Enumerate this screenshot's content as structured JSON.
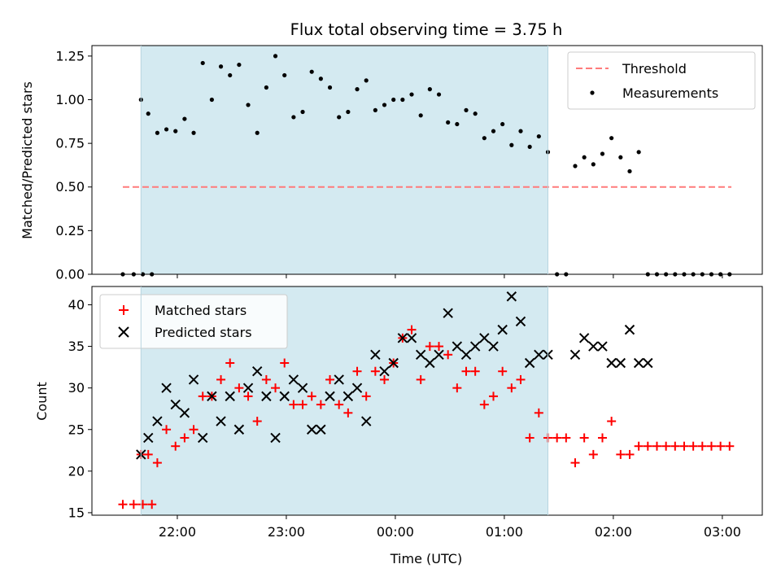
{
  "chart_data": [
    {
      "type": "scatter",
      "title": "Flux total observing time = 3.75 h",
      "xlabel": "",
      "ylabel": "Matched/Predicted stars",
      "ylim": [
        0,
        1.31
      ],
      "yticks": [
        "0.00",
        "0.25",
        "0.50",
        "0.75",
        "1.00",
        "1.25"
      ],
      "xlim": [
        "21:13",
        "03:22"
      ],
      "shaded_span": [
        "21:40",
        "01:24"
      ],
      "shade_color": "#d4eaf1",
      "legend_position": "upper right",
      "threshold": {
        "name": "Threshold",
        "value": 0.5,
        "x": [
          "21:30",
          "03:05"
        ],
        "color": "#ff7b7b"
      },
      "series": [
        {
          "name": "Measurements",
          "color": "#000000",
          "x": [
            "21:30",
            "21:36",
            "21:41",
            "21:46",
            "21:40",
            "21:44",
            "21:49",
            "21:54",
            "21:59",
            "22:04",
            "22:09",
            "22:14",
            "22:19",
            "22:24",
            "22:29",
            "22:34",
            "22:39",
            "22:44",
            "22:49",
            "22:54",
            "22:59",
            "23:04",
            "23:09",
            "23:14",
            "23:19",
            "23:24",
            "23:29",
            "23:34",
            "23:39",
            "23:44",
            "23:49",
            "23:54",
            "23:59",
            "00:04",
            "00:09",
            "00:14",
            "00:19",
            "00:24",
            "00:29",
            "00:34",
            "00:39",
            "00:44",
            "00:49",
            "00:54",
            "00:59",
            "01:04",
            "01:09",
            "01:14",
            "01:19",
            "01:24",
            "01:29",
            "01:34",
            "01:39",
            "01:44",
            "01:49",
            "01:54",
            "01:59",
            "02:04",
            "02:09",
            "02:14",
            "02:19",
            "02:24",
            "02:29",
            "02:34",
            "02:39",
            "02:44",
            "02:49",
            "02:54",
            "02:59",
            "03:04"
          ],
          "y": [
            0,
            0,
            0,
            0,
            1.0,
            0.92,
            0.81,
            0.83,
            0.82,
            0.89,
            0.81,
            1.21,
            1.0,
            1.19,
            1.14,
            1.2,
            0.97,
            0.81,
            1.07,
            1.25,
            1.14,
            0.9,
            0.93,
            1.16,
            1.12,
            1.07,
            0.9,
            0.93,
            1.06,
            1.11,
            0.94,
            0.97,
            1.0,
            1.0,
            1.03,
            0.91,
            1.06,
            1.03,
            0.87,
            0.86,
            0.94,
            0.92,
            0.78,
            0.82,
            0.86,
            0.74,
            0.82,
            0.73,
            0.79,
            0.7,
            0,
            0,
            0.62,
            0.67,
            0.63,
            0.69,
            0.78,
            0.67,
            0.59,
            0.7,
            0,
            0,
            0,
            0,
            0,
            0,
            0,
            0,
            0,
            0
          ]
        }
      ]
    },
    {
      "type": "scatter",
      "title": "",
      "xlabel": "Time (UTC)",
      "ylabel": "Count",
      "ylim": [
        14.7,
        42.2
      ],
      "yticks": [
        "15",
        "20",
        "25",
        "30",
        "35",
        "40"
      ],
      "xticks": [
        "22:00",
        "23:00",
        "00:00",
        "01:00",
        "02:00",
        "03:00"
      ],
      "xlim": [
        "21:13",
        "03:22"
      ],
      "shaded_span": [
        "21:40",
        "01:24"
      ],
      "legend_position": "upper left",
      "series": [
        {
          "name": "Matched stars",
          "marker": "plus",
          "color": "#ff0000",
          "x": [
            "21:30",
            "21:36",
            "21:41",
            "21:46",
            "21:40",
            "21:44",
            "21:49",
            "21:54",
            "21:59",
            "22:04",
            "22:09",
            "22:14",
            "22:19",
            "22:24",
            "22:29",
            "22:34",
            "22:39",
            "22:44",
            "22:49",
            "22:54",
            "22:59",
            "23:04",
            "23:09",
            "23:14",
            "23:19",
            "23:24",
            "23:29",
            "23:34",
            "23:39",
            "23:44",
            "23:49",
            "23:54",
            "23:59",
            "00:04",
            "00:09",
            "00:14",
            "00:19",
            "00:24",
            "00:29",
            "00:34",
            "00:39",
            "00:44",
            "00:49",
            "00:54",
            "00:59",
            "01:04",
            "01:09",
            "01:14",
            "01:19",
            "01:24",
            "01:29",
            "01:34",
            "01:39",
            "01:44",
            "01:49",
            "01:54",
            "01:59",
            "02:04",
            "02:09",
            "02:14",
            "02:19",
            "02:24",
            "02:29",
            "02:34",
            "02:39",
            "02:44",
            "02:49",
            "02:54",
            "02:59",
            "03:04"
          ],
          "y": [
            16,
            16,
            16,
            16,
            22,
            22,
            21,
            25,
            23,
            24,
            25,
            29,
            29,
            31,
            33,
            30,
            29,
            26,
            31,
            30,
            33,
            28,
            28,
            29,
            28,
            31,
            28,
            27,
            32,
            29,
            32,
            31,
            33,
            36,
            37,
            31,
            35,
            35,
            34,
            30,
            32,
            32,
            28,
            29,
            32,
            30,
            31,
            24,
            27,
            24,
            24,
            24,
            21,
            24,
            22,
            24,
            26,
            22,
            22,
            23,
            23,
            23,
            23,
            23,
            23,
            23,
            23,
            23,
            23,
            23
          ]
        },
        {
          "name": "Predicted stars",
          "marker": "x",
          "color": "#000000",
          "x": [
            "21:40",
            "21:44",
            "21:49",
            "21:54",
            "21:59",
            "22:04",
            "22:09",
            "22:14",
            "22:19",
            "22:24",
            "22:29",
            "22:34",
            "22:39",
            "22:44",
            "22:49",
            "22:54",
            "22:59",
            "23:04",
            "23:09",
            "23:14",
            "23:19",
            "23:24",
            "23:29",
            "23:34",
            "23:39",
            "23:44",
            "23:49",
            "23:54",
            "23:59",
            "00:04",
            "00:09",
            "00:14",
            "00:19",
            "00:24",
            "00:29",
            "00:34",
            "00:39",
            "00:44",
            "00:49",
            "00:54",
            "00:59",
            "01:04",
            "01:09",
            "01:14",
            "01:19",
            "01:24",
            "01:39",
            "01:44",
            "01:49",
            "01:54",
            "01:59",
            "02:04",
            "02:09",
            "02:14",
            "02:19"
          ],
          "y": [
            22,
            24,
            26,
            30,
            28,
            27,
            31,
            24,
            29,
            26,
            29,
            25,
            30,
            32,
            29,
            24,
            29,
            31,
            30,
            25,
            25,
            29,
            31,
            29,
            30,
            26,
            34,
            32,
            33,
            36,
            36,
            34,
            33,
            34,
            39,
            35,
            34,
            35,
            36,
            35,
            37,
            41,
            38,
            33,
            34,
            34,
            34,
            36,
            35,
            35,
            33,
            33,
            37,
            33,
            33
          ]
        }
      ]
    }
  ]
}
